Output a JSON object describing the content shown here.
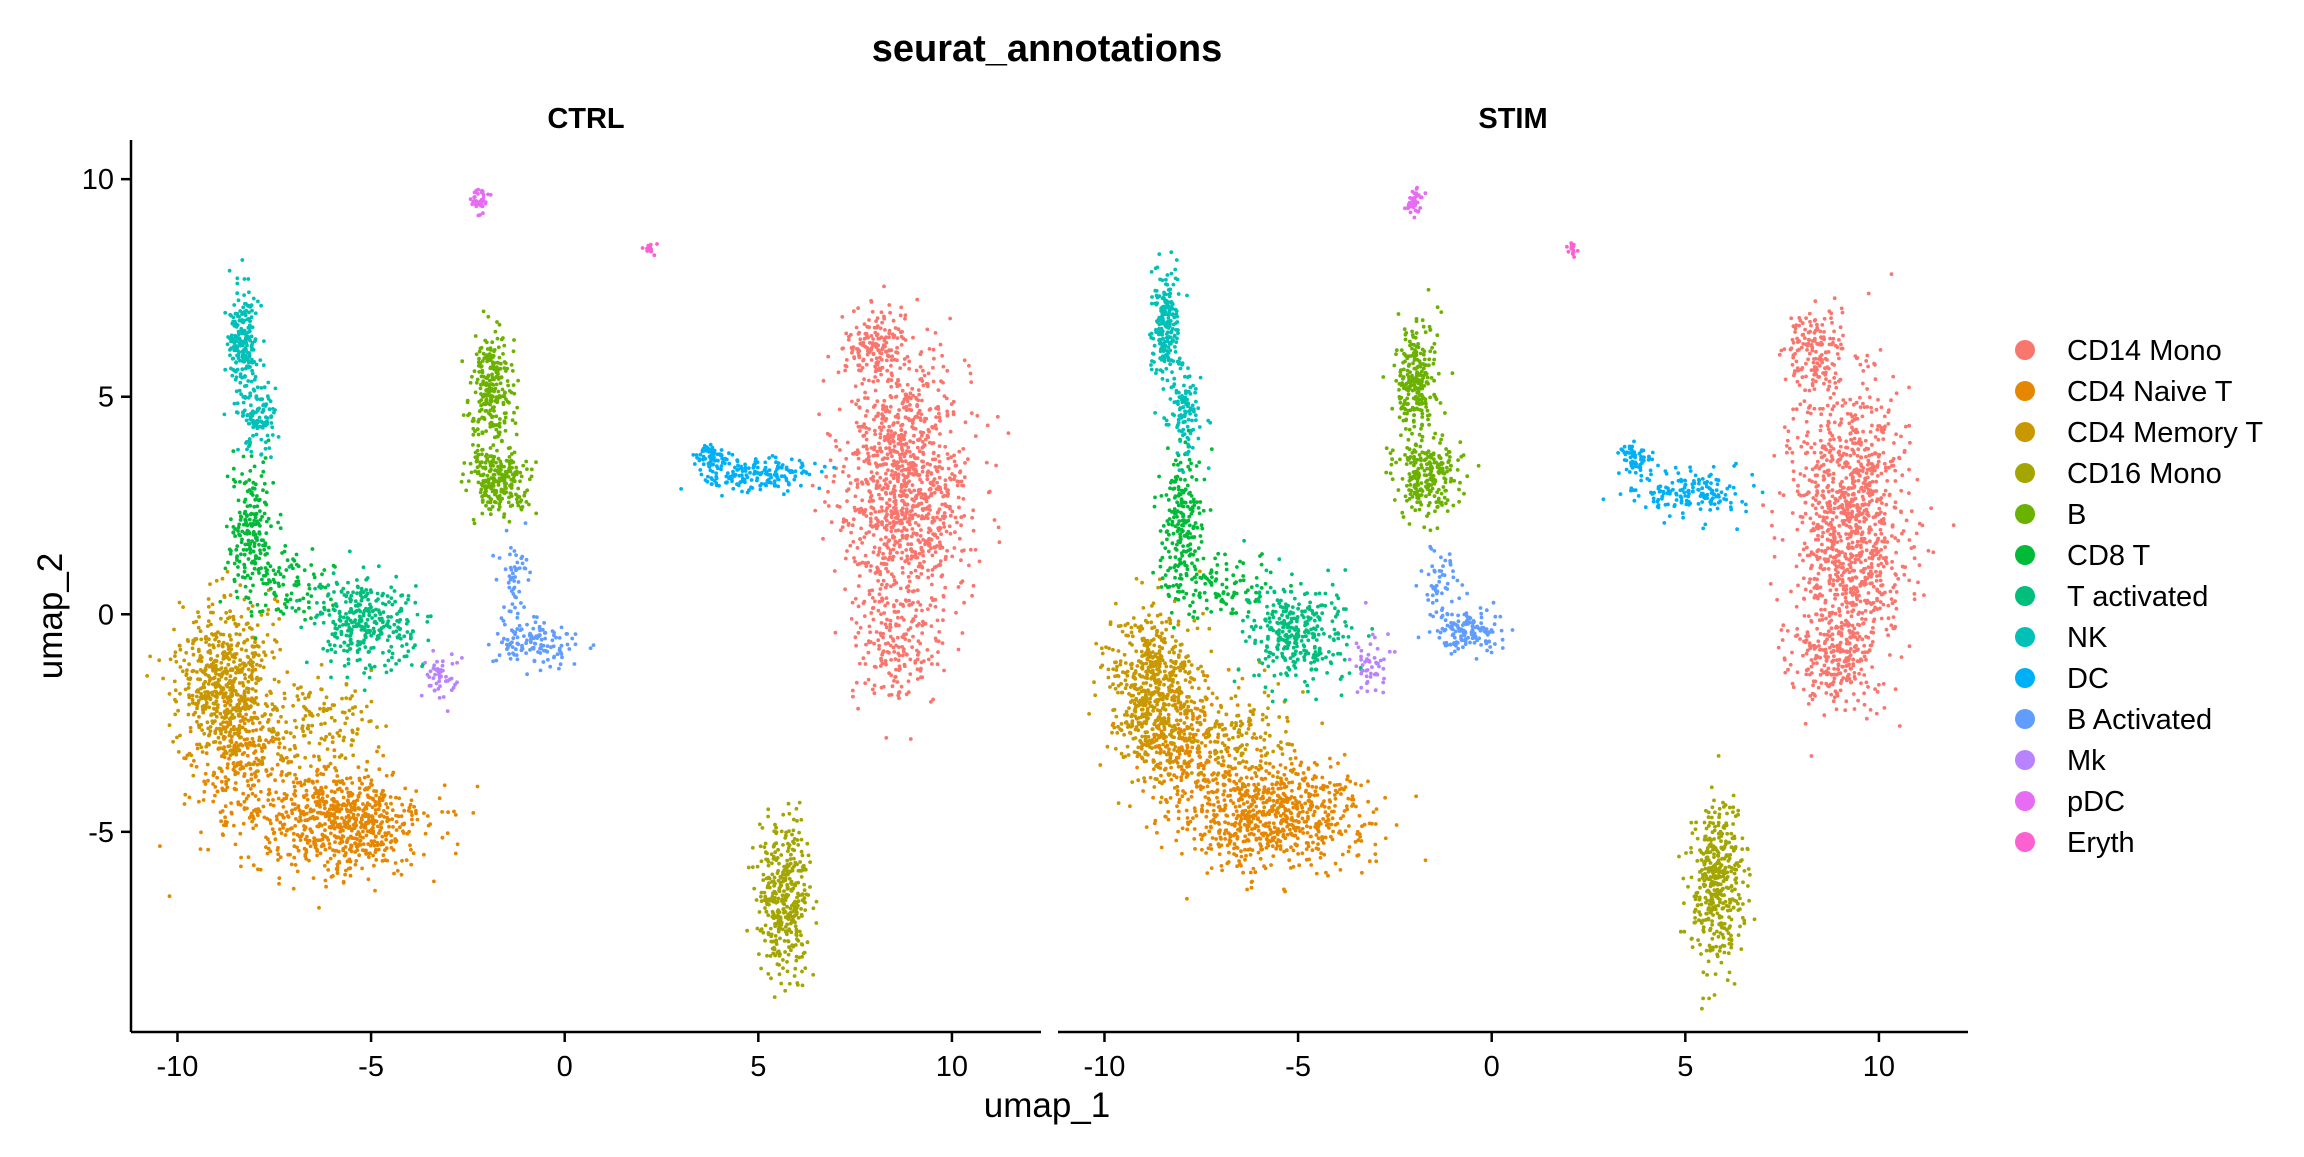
{
  "chart_data": {
    "type": "scatter",
    "title": "seurat_annotations",
    "xlabel": "umap_1",
    "ylabel": "umap_2",
    "xlim": [
      -11.2,
      12.3
    ],
    "ylim": [
      -9.6,
      10.9
    ],
    "xticks": [
      -10,
      -5,
      0,
      5,
      10
    ],
    "yticks": [
      -5,
      0,
      5,
      10
    ],
    "panels": [
      "CTRL",
      "STIM"
    ],
    "grid": false,
    "legend_position": "right",
    "point_size": "small",
    "series": [
      {
        "name": "CD14 Mono",
        "color": "#F8766D",
        "clusters": {
          "CTRL": [
            {
              "cx": 8.8,
              "cy": 3.0,
              "sx": 1.1,
              "sy": 2.0,
              "n": 1100
            },
            {
              "cx": 8.0,
              "cy": 6.2,
              "sx": 0.5,
              "sy": 0.5,
              "n": 150
            },
            {
              "cx": 8.6,
              "cy": -0.8,
              "sx": 0.8,
              "sy": 0.9,
              "n": 180
            }
          ],
          "STIM": [
            {
              "cx": 9.2,
              "cy": 2.0,
              "sx": 1.0,
              "sy": 2.2,
              "n": 1100
            },
            {
              "cx": 8.3,
              "cy": 6.1,
              "sx": 0.5,
              "sy": 0.6,
              "n": 150
            },
            {
              "cx": 8.8,
              "cy": -1.0,
              "sx": 0.8,
              "sy": 0.6,
              "n": 200
            }
          ]
        }
      },
      {
        "name": "CD4 Naive T",
        "color": "#E58700",
        "clusters": {
          "CTRL": [
            {
              "cx": -5.8,
              "cy": -4.8,
              "sx": 1.5,
              "sy": 0.8,
              "n": 700
            },
            {
              "cx": -8.3,
              "cy": -3.4,
              "sx": 0.8,
              "sy": 1.0,
              "n": 250
            }
          ],
          "STIM": [
            {
              "cx": -5.7,
              "cy": -4.6,
              "sx": 1.6,
              "sy": 0.8,
              "n": 750
            },
            {
              "cx": -8.0,
              "cy": -3.2,
              "sx": 0.8,
              "sy": 1.0,
              "n": 250
            }
          ]
        }
      },
      {
        "name": "CD4 Memory T",
        "color": "#C99800",
        "clusters": {
          "CTRL": [
            {
              "cx": -8.8,
              "cy": -1.5,
              "sx": 0.8,
              "sy": 1.2,
              "n": 600
            },
            {
              "cx": -6.5,
              "cy": -2.6,
              "sx": 1.0,
              "sy": 0.8,
              "n": 150
            }
          ],
          "STIM": [
            {
              "cx": -8.8,
              "cy": -1.7,
              "sx": 0.8,
              "sy": 1.2,
              "n": 600
            },
            {
              "cx": -6.5,
              "cy": -2.8,
              "sx": 1.0,
              "sy": 0.8,
              "n": 150
            }
          ]
        }
      },
      {
        "name": "CD16 Mono",
        "color": "#A3A500",
        "clusters": {
          "CTRL": [
            {
              "cx": 5.7,
              "cy": -6.5,
              "sx": 0.45,
              "sy": 1.1,
              "n": 400
            }
          ],
          "STIM": [
            {
              "cx": 5.8,
              "cy": -6.2,
              "sx": 0.45,
              "sy": 1.3,
              "n": 420
            }
          ]
        }
      },
      {
        "name": "B",
        "color": "#6BB100",
        "clusters": {
          "CTRL": [
            {
              "cx": -1.9,
              "cy": 5.3,
              "sx": 0.35,
              "sy": 0.8,
              "n": 250
            },
            {
              "cx": -1.7,
              "cy": 3.1,
              "sx": 0.55,
              "sy": 0.5,
              "n": 250
            }
          ],
          "STIM": [
            {
              "cx": -2.0,
              "cy": 5.4,
              "sx": 0.35,
              "sy": 0.9,
              "n": 250
            },
            {
              "cx": -1.7,
              "cy": 3.2,
              "sx": 0.55,
              "sy": 0.6,
              "n": 250
            }
          ]
        }
      },
      {
        "name": "CD8 T",
        "color": "#00BA38",
        "clusters": {
          "CTRL": [
            {
              "cx": -8.1,
              "cy": 2.0,
              "sx": 0.4,
              "sy": 1.0,
              "n": 200
            },
            {
              "cx": -7.2,
              "cy": 0.6,
              "sx": 0.8,
              "sy": 0.5,
              "n": 100
            }
          ],
          "STIM": [
            {
              "cx": -8.0,
              "cy": 2.0,
              "sx": 0.4,
              "sy": 1.1,
              "n": 220
            },
            {
              "cx": -7.0,
              "cy": 0.6,
              "sx": 0.9,
              "sy": 0.5,
              "n": 100
            }
          ]
        }
      },
      {
        "name": "T activated",
        "color": "#00BF7D",
        "clusters": {
          "CTRL": [
            {
              "cx": -5.1,
              "cy": -0.2,
              "sx": 0.9,
              "sy": 0.7,
              "n": 320
            }
          ],
          "STIM": [
            {
              "cx": -5.0,
              "cy": -0.4,
              "sx": 0.9,
              "sy": 0.8,
              "n": 330
            }
          ]
        }
      },
      {
        "name": "NK",
        "color": "#00C0B8",
        "clusters": {
          "CTRL": [
            {
              "cx": -8.3,
              "cy": 6.2,
              "sx": 0.25,
              "sy": 0.9,
              "n": 220
            },
            {
              "cx": -7.9,
              "cy": 4.5,
              "sx": 0.3,
              "sy": 0.6,
              "n": 100
            }
          ],
          "STIM": [
            {
              "cx": -8.4,
              "cy": 6.5,
              "sx": 0.25,
              "sy": 0.9,
              "n": 220
            },
            {
              "cx": -7.9,
              "cy": 4.5,
              "sx": 0.3,
              "sy": 0.7,
              "n": 100
            }
          ]
        }
      },
      {
        "name": "DC",
        "color": "#00B0F6",
        "clusters": {
          "CTRL": [
            {
              "cx": 5.0,
              "cy": 3.2,
              "sx": 1.0,
              "sy": 0.25,
              "n": 170
            },
            {
              "cx": 3.8,
              "cy": 3.6,
              "sx": 0.3,
              "sy": 0.2,
              "n": 60
            }
          ],
          "STIM": [
            {
              "cx": 5.0,
              "cy": 2.8,
              "sx": 1.0,
              "sy": 0.35,
              "n": 170
            },
            {
              "cx": 3.7,
              "cy": 3.6,
              "sx": 0.3,
              "sy": 0.2,
              "n": 60
            }
          ]
        }
      },
      {
        "name": "B Activated",
        "color": "#619CFF",
        "clusters": {
          "CTRL": [
            {
              "cx": -0.8,
              "cy": -0.6,
              "sx": 0.7,
              "sy": 0.35,
              "n": 130
            },
            {
              "cx": -1.3,
              "cy": 0.7,
              "sx": 0.3,
              "sy": 0.6,
              "n": 50
            }
          ],
          "STIM": [
            {
              "cx": -0.6,
              "cy": -0.4,
              "sx": 0.6,
              "sy": 0.35,
              "n": 140
            },
            {
              "cx": -1.3,
              "cy": 0.8,
              "sx": 0.3,
              "sy": 0.6,
              "n": 50
            }
          ]
        }
      },
      {
        "name": "Mk",
        "color": "#B983FF",
        "clusters": {
          "CTRL": [
            {
              "cx": -3.2,
              "cy": -1.4,
              "sx": 0.3,
              "sy": 0.5,
              "n": 50
            }
          ],
          "STIM": [
            {
              "cx": -3.1,
              "cy": -1.2,
              "sx": 0.3,
              "sy": 0.5,
              "n": 50
            }
          ]
        }
      },
      {
        "name": "pDC",
        "color": "#E76BF3",
        "clusters": {
          "CTRL": [
            {
              "cx": -2.2,
              "cy": 9.5,
              "sx": 0.15,
              "sy": 0.2,
              "n": 35
            }
          ],
          "STIM": [
            {
              "cx": -2.0,
              "cy": 9.5,
              "sx": 0.15,
              "sy": 0.2,
              "n": 40
            }
          ]
        }
      },
      {
        "name": "Eryth",
        "color": "#FD61D1",
        "clusters": {
          "CTRL": [
            {
              "cx": 2.2,
              "cy": 8.4,
              "sx": 0.1,
              "sy": 0.12,
              "n": 15
            }
          ],
          "STIM": [
            {
              "cx": 2.1,
              "cy": 8.4,
              "sx": 0.1,
              "sy": 0.12,
              "n": 15
            }
          ]
        }
      }
    ]
  }
}
